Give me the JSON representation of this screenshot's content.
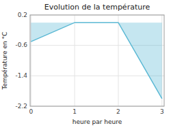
{
  "chart_data": {
    "type": "area",
    "title": "Evolution de la température",
    "xlabel": "heure par heure",
    "ylabel": "Température en °C",
    "x": [
      0,
      1,
      2,
      3
    ],
    "values": [
      -0.5,
      0.0,
      0.0,
      -2.0
    ],
    "baseline": 0.0,
    "color": "#5ab8d4",
    "xlim": [
      -0.02,
      3.05
    ],
    "ylim": [
      -2.2,
      0.2
    ],
    "xticks": [
      0,
      1,
      2,
      3
    ],
    "yticks": [
      0.2,
      -0.6,
      -1.4,
      -2.2
    ],
    "grid": true
  }
}
